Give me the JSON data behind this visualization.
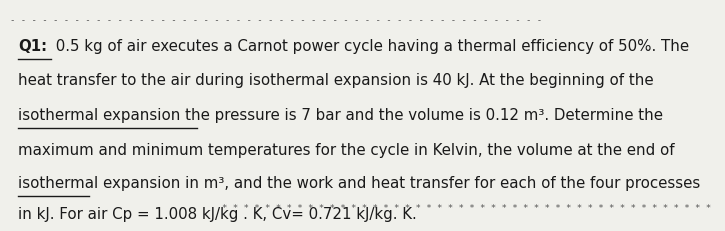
{
  "background_color": "#f0f0eb",
  "top_dashes": "- - - - - - - - - - - - - - - - - - - - - - - - - - - - - - - - - - - - - - - - - - - - - - - - - -",
  "bottom_stars": "* * * * * * * * * * * * * * * * * * * * * * * * * * * * * * * * * * * * * * * * * * * * * *",
  "label": "Q1:",
  "line1": "0.5 kg of air executes a Carnot power cycle having a thermal efficiency of 50%. The",
  "line2": "heat transfer to the air during isothermal expansion is 40 kJ. At the beginning of the",
  "line3": "isothermal expansion the pressure is 7 bar and the volume is 0.12 m³. Determine the",
  "line4": "maximum and minimum temperatures for the cycle in Kelvin, the volume at the end of",
  "line5": "isothermal expansion in m³, and the work and heat transfer for each of the four processes",
  "line6": "in kJ. For air Cp = 1.008 kJ/kg . K, Cv= 0.721 kJ/kg. K.",
  "text_color": "#1a1a1a",
  "font_size": 10.8,
  "label_font_size": 10.8
}
